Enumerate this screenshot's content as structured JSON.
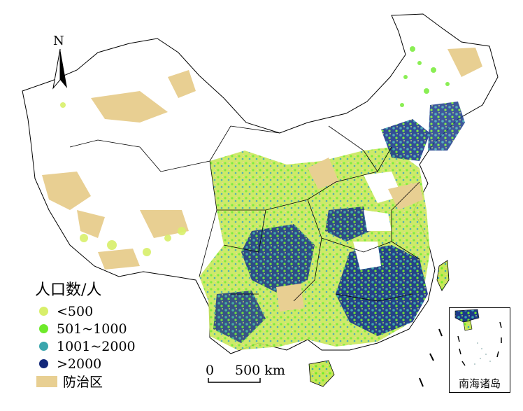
{
  "legend": {
    "title": "人口数/人",
    "classes": [
      {
        "label": "<500",
        "color": "#d8ef6a"
      },
      {
        "label": "501~1000",
        "color": "#6eea2a"
      },
      {
        "label": "1001~2000",
        "color": "#3aa6ad"
      },
      {
        "label": ">2000",
        "color": "#13287a"
      }
    ],
    "zone": {
      "label": "防治区",
      "color": "#e8cf92"
    }
  },
  "north_arrow": {
    "label": "N"
  },
  "scale_bar": {
    "start_label": "0",
    "end_label": "500 km"
  },
  "inset": {
    "label": "南海诸岛"
  }
}
